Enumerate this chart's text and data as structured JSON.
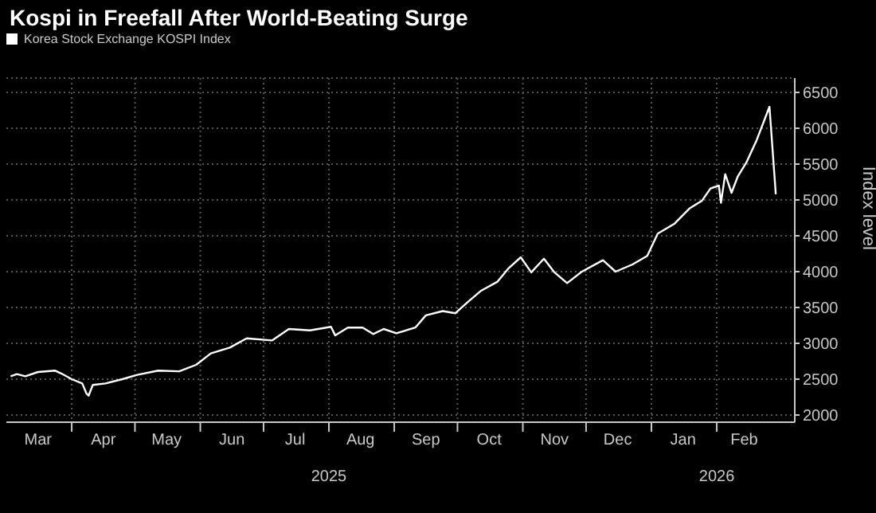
{
  "chart_data": {
    "type": "line",
    "title": "Kospi in Freefall After World-Beating Surge",
    "ylabel": "Index level",
    "legend": "top left",
    "grid": true,
    "x2lim": [
      "2025-03-01",
      "2026-03-10"
    ],
    "x2ticks": [
      {
        "value": "2025-08-01",
        "label": "2025"
      },
      {
        "value": "2026-02-01",
        "label": "2026"
      }
    ],
    "xlim": [
      "2025-03-01",
      "2026-03-10"
    ],
    "ylim": [
      1900,
      6700
    ],
    "yticks": [
      2000,
      2500,
      3000,
      3500,
      4000,
      4500,
      5000,
      5500,
      6000,
      6500
    ],
    "xticks": [
      {
        "value": "2025-03-16",
        "label": "Mar"
      },
      {
        "value": "2025-04-01",
        "label": null
      },
      {
        "value": "2025-04-16",
        "label": "Apr"
      },
      {
        "value": "2025-05-01",
        "label": null
      },
      {
        "value": "2025-05-16",
        "label": "May"
      },
      {
        "value": "2025-06-01",
        "label": null
      },
      {
        "value": "2025-06-16",
        "label": "Jun"
      },
      {
        "value": "2025-07-01",
        "label": null
      },
      {
        "value": "2025-07-16",
        "label": "Jul"
      },
      {
        "value": "2025-08-01",
        "label": null
      },
      {
        "value": "2025-08-16",
        "label": "Aug"
      },
      {
        "value": "2025-09-01",
        "label": null
      },
      {
        "value": "2025-09-16",
        "label": "Sep"
      },
      {
        "value": "2025-10-01",
        "label": null
      },
      {
        "value": "2025-10-16",
        "label": "Oct"
      },
      {
        "value": "2025-11-01",
        "label": null
      },
      {
        "value": "2025-11-16",
        "label": "Nov"
      },
      {
        "value": "2025-12-01",
        "label": null
      },
      {
        "value": "2025-12-16",
        "label": "Dec"
      },
      {
        "value": "2026-01-01",
        "label": null
      },
      {
        "value": "2026-01-16",
        "label": "Jan"
      },
      {
        "value": "2026-02-01",
        "label": null
      },
      {
        "value": "2026-02-14",
        "label": "Feb"
      }
    ],
    "x": [
      "2025-03-03",
      "2025-03-06",
      "2025-03-10",
      "2025-03-16",
      "2025-03-24",
      "2025-03-27",
      "2025-04-01",
      "2025-04-06",
      "2025-04-08",
      "2025-04-09",
      "2025-04-11",
      "2025-04-17",
      "2025-04-25",
      "2025-05-02",
      "2025-05-12",
      "2025-05-22",
      "2025-05-30",
      "2025-06-06",
      "2025-06-15",
      "2025-06-23",
      "2025-07-05",
      "2025-07-13",
      "2025-07-23",
      "2025-08-02",
      "2025-08-04",
      "2025-08-10",
      "2025-08-17",
      "2025-08-22",
      "2025-08-27",
      "2025-09-02",
      "2025-09-11",
      "2025-09-16",
      "2025-09-24",
      "2025-09-30",
      "2025-10-06",
      "2025-10-12",
      "2025-10-20",
      "2025-10-25",
      "2025-10-31",
      "2025-11-05",
      "2025-11-11",
      "2025-11-16",
      "2025-11-22",
      "2025-11-29",
      "2025-12-09",
      "2025-12-15",
      "2025-12-23",
      "2025-12-30",
      "2026-01-04",
      "2026-01-12",
      "2026-01-19",
      "2026-01-25",
      "2026-01-29",
      "2026-02-02",
      "2026-02-03",
      "2026-02-05",
      "2026-02-08",
      "2026-02-11",
      "2026-02-15",
      "2026-02-20",
      "2026-02-26",
      "2026-03-01"
    ],
    "series": [
      {
        "name": "Korea Stock Exchange KOSPI Index",
        "color": "#ffffff",
        "values": [
          2540,
          2570,
          2540,
          2600,
          2620,
          2580,
          2500,
          2440,
          2300,
          2270,
          2420,
          2440,
          2500,
          2560,
          2620,
          2610,
          2700,
          2860,
          2940,
          3070,
          3040,
          3200,
          3180,
          3230,
          3110,
          3220,
          3220,
          3130,
          3200,
          3140,
          3220,
          3390,
          3450,
          3420,
          3580,
          3730,
          3860,
          4040,
          4200,
          3990,
          4180,
          3990,
          3840,
          4000,
          4160,
          4000,
          4100,
          4220,
          4530,
          4670,
          4880,
          4990,
          5160,
          5200,
          4960,
          5360,
          5100,
          5330,
          5520,
          5840,
          6300,
          5080
        ]
      }
    ]
  }
}
